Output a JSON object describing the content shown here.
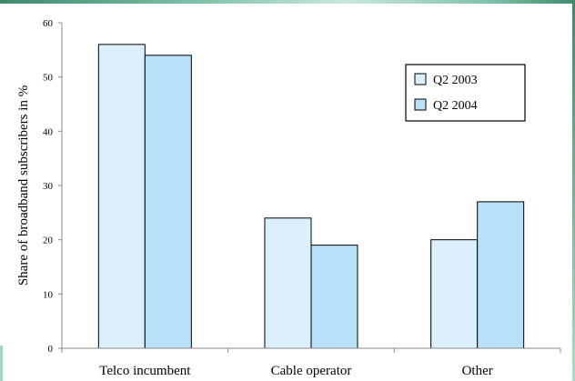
{
  "chart_data": {
    "type": "bar",
    "title": "",
    "xlabel": "",
    "ylabel": "Share of broadband subscribers in %",
    "ylim": [
      0,
      60
    ],
    "yticks": [
      0,
      10,
      20,
      30,
      40,
      50,
      60
    ],
    "grid": false,
    "legend_position": "top-right",
    "categories": [
      "Telco incumbent",
      "Cable operator",
      "Other"
    ],
    "series": [
      {
        "name": "Q2 2003",
        "values": [
          56,
          24,
          20
        ],
        "color": "#dbeffc"
      },
      {
        "name": "Q2 2004",
        "values": [
          54,
          19,
          27
        ],
        "color": "#b8e0f8"
      }
    ]
  },
  "colors": {
    "accent_frame": "#5fae8c",
    "bar_stroke": "#000000"
  }
}
